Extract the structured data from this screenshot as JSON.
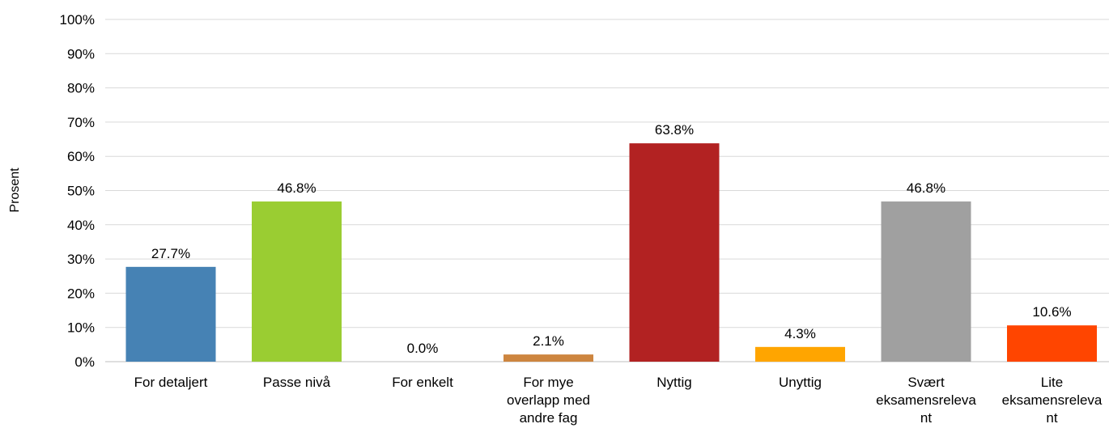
{
  "chart_data": {
    "type": "bar",
    "ylabel": "Prosent",
    "ylim": [
      0,
      100
    ],
    "yticks": [
      "0%",
      "10%",
      "20%",
      "30%",
      "40%",
      "50%",
      "60%",
      "70%",
      "80%",
      "90%",
      "100%"
    ],
    "grid": true,
    "categories": [
      [
        "For detaljert"
      ],
      [
        "Passe nivå"
      ],
      [
        "For enkelt"
      ],
      [
        "For mye",
        "overlapp med",
        "andre fag"
      ],
      [
        "Nyttig"
      ],
      [
        "Unyttig"
      ],
      [
        "Svært",
        "eksamensreleva",
        "nt"
      ],
      [
        "Lite",
        "eksamensreleva",
        "nt"
      ]
    ],
    "values": [
      27.7,
      46.8,
      0.0,
      2.1,
      63.8,
      4.3,
      46.8,
      10.6
    ],
    "data_labels": [
      "27.7%",
      "46.8%",
      "0.0%",
      "2.1%",
      "63.8%",
      "4.3%",
      "46.8%",
      "10.6%"
    ],
    "colors": [
      "#4682B4",
      "#9ACD32",
      "#A0522D",
      "#CD853F",
      "#B22222",
      "#FFA500",
      "#A0A0A0",
      "#FF4500"
    ]
  }
}
